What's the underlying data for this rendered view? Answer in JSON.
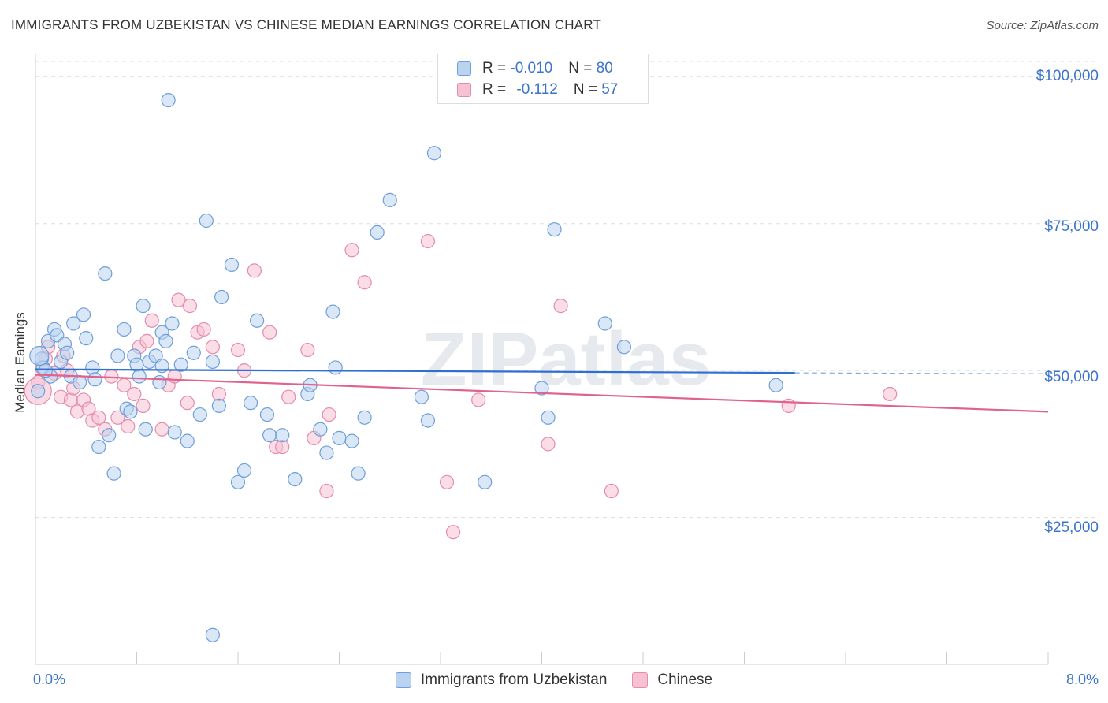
{
  "header": {
    "title": "IMMIGRANTS FROM UZBEKISTAN VS CHINESE MEDIAN EARNINGS CORRELATION CHART",
    "source": "Source: ZipAtlas.com"
  },
  "watermark": "ZIPatlas",
  "legend": {
    "rows": [
      {
        "r_label": "R = ",
        "r_value": "-0.010",
        "n_label": "N = ",
        "n_value": "80"
      },
      {
        "r_label": "R = ",
        "r_value": "-0.112",
        "n_label": "N = ",
        "n_value": "57"
      }
    ]
  },
  "colors": {
    "blue_fill": "#b9d3f1",
    "blue_stroke": "#6f9fd8",
    "blue_line": "#2f6fd0",
    "pink_fill": "#f6c1d3",
    "pink_stroke": "#e58bab",
    "pink_line": "#e0628f",
    "axis_label": "#3b74c9",
    "grid": "#dddddd"
  },
  "chart_data": {
    "type": "scatter",
    "title": "IMMIGRANTS FROM UZBEKISTAN VS CHINESE MEDIAN EARNINGS CORRELATION CHART",
    "xlabel": "",
    "ylabel": "Median Earnings",
    "xlim": [
      0,
      8
    ],
    "ylim": [
      0,
      105000
    ],
    "x_tick_labels": [
      "0.0%",
      "8.0%"
    ],
    "y_ticks": [
      25000,
      50000,
      75000,
      100000
    ],
    "y_tick_labels": [
      "$25,000",
      "$50,000",
      "$75,000",
      "$100,000"
    ],
    "grid": true,
    "legend_position": "bottom",
    "series": [
      {
        "name": "Immigrants from Uzbekistan",
        "color": "#6f9fd8",
        "trend": {
          "x": [
            0,
            6
          ],
          "y": [
            50200,
            49600
          ]
        },
        "points": [
          [
            0.02,
            46500
          ],
          [
            0.05,
            52000
          ],
          [
            0.06,
            50500
          ],
          [
            0.1,
            55000
          ],
          [
            0.12,
            49000
          ],
          [
            0.15,
            57000
          ],
          [
            0.17,
            56000
          ],
          [
            0.2,
            51500
          ],
          [
            0.23,
            54500
          ],
          [
            0.25,
            53000
          ],
          [
            0.28,
            49000
          ],
          [
            0.3,
            58000
          ],
          [
            0.35,
            48000
          ],
          [
            0.38,
            59500
          ],
          [
            0.45,
            50500
          ],
          [
            0.47,
            48500
          ],
          [
            0.5,
            37000
          ],
          [
            0.55,
            66500
          ],
          [
            0.58,
            39000
          ],
          [
            0.62,
            32500
          ],
          [
            0.65,
            52500
          ],
          [
            0.7,
            57000
          ],
          [
            0.72,
            43500
          ],
          [
            0.75,
            43000
          ],
          [
            0.78,
            52500
          ],
          [
            0.8,
            51000
          ],
          [
            0.82,
            49000
          ],
          [
            0.85,
            61000
          ],
          [
            0.87,
            40000
          ],
          [
            0.9,
            51500
          ],
          [
            0.95,
            52500
          ],
          [
            0.98,
            48000
          ],
          [
            1.0,
            56500
          ],
          [
            1.03,
            55000
          ],
          [
            1.05,
            96000
          ],
          [
            1.08,
            58000
          ],
          [
            1.1,
            39500
          ],
          [
            1.15,
            51000
          ],
          [
            1.2,
            38000
          ],
          [
            1.25,
            53000
          ],
          [
            1.3,
            42500
          ],
          [
            1.35,
            75500
          ],
          [
            1.4,
            51500
          ],
          [
            1.45,
            44000
          ],
          [
            1.47,
            62500
          ],
          [
            1.55,
            68000
          ],
          [
            1.6,
            31000
          ],
          [
            1.65,
            33000
          ],
          [
            1.7,
            44500
          ],
          [
            1.75,
            58500
          ],
          [
            1.83,
            42500
          ],
          [
            1.85,
            39000
          ],
          [
            1.95,
            39000
          ],
          [
            2.05,
            31500
          ],
          [
            2.15,
            46000
          ],
          [
            2.17,
            47500
          ],
          [
            2.25,
            40000
          ],
          [
            2.3,
            36000
          ],
          [
            2.35,
            60000
          ],
          [
            2.37,
            50500
          ],
          [
            2.4,
            38500
          ],
          [
            2.5,
            38000
          ],
          [
            2.55,
            32500
          ],
          [
            2.6,
            42000
          ],
          [
            2.7,
            73500
          ],
          [
            2.8,
            79000
          ],
          [
            3.05,
            45500
          ],
          [
            3.1,
            41500
          ],
          [
            3.15,
            87000
          ],
          [
            3.55,
            31000
          ],
          [
            4.0,
            47000
          ],
          [
            4.05,
            42000
          ],
          [
            4.1,
            74000
          ],
          [
            4.5,
            58000
          ],
          [
            4.65,
            54000
          ],
          [
            5.85,
            47500
          ],
          [
            1.4,
            5000
          ],
          [
            0.08,
            50000
          ],
          [
            0.4,
            55500
          ],
          [
            1.0,
            50800
          ]
        ]
      },
      {
        "name": "Chinese",
        "color": "#e58bab",
        "trend": {
          "x": [
            0,
            8
          ],
          "y": [
            49300,
            43000
          ]
        },
        "points": [
          [
            0.05,
            50500
          ],
          [
            0.08,
            52000
          ],
          [
            0.1,
            54000
          ],
          [
            0.15,
            49500
          ],
          [
            0.2,
            45500
          ],
          [
            0.22,
            52500
          ],
          [
            0.25,
            50000
          ],
          [
            0.28,
            45000
          ],
          [
            0.3,
            47000
          ],
          [
            0.33,
            43000
          ],
          [
            0.38,
            45000
          ],
          [
            0.42,
            43500
          ],
          [
            0.45,
            41500
          ],
          [
            0.5,
            42000
          ],
          [
            0.55,
            40000
          ],
          [
            0.6,
            49000
          ],
          [
            0.65,
            42000
          ],
          [
            0.7,
            47500
          ],
          [
            0.73,
            40500
          ],
          [
            0.78,
            46000
          ],
          [
            0.82,
            54000
          ],
          [
            0.85,
            44000
          ],
          [
            0.88,
            55000
          ],
          [
            0.92,
            58500
          ],
          [
            1.0,
            40000
          ],
          [
            1.05,
            47500
          ],
          [
            1.1,
            49000
          ],
          [
            1.13,
            62000
          ],
          [
            1.2,
            44500
          ],
          [
            1.22,
            61000
          ],
          [
            1.28,
            56500
          ],
          [
            1.33,
            57000
          ],
          [
            1.4,
            54000
          ],
          [
            1.45,
            46000
          ],
          [
            1.6,
            53500
          ],
          [
            1.65,
            50000
          ],
          [
            1.73,
            67000
          ],
          [
            1.85,
            56500
          ],
          [
            1.9,
            37000
          ],
          [
            1.95,
            37000
          ],
          [
            2.0,
            45500
          ],
          [
            2.15,
            53500
          ],
          [
            2.2,
            38500
          ],
          [
            2.3,
            29500
          ],
          [
            2.32,
            42500
          ],
          [
            2.5,
            70500
          ],
          [
            2.6,
            65000
          ],
          [
            3.1,
            72000
          ],
          [
            3.25,
            31000
          ],
          [
            3.3,
            22500
          ],
          [
            3.5,
            45000
          ],
          [
            4.05,
            37500
          ],
          [
            4.15,
            61000
          ],
          [
            4.55,
            29500
          ],
          [
            5.95,
            44000
          ],
          [
            6.75,
            46000
          ],
          [
            0.02,
            48000
          ]
        ]
      }
    ]
  },
  "axes": {
    "ylabel": "Median Earnings",
    "x_left": "0.0%",
    "x_right": "8.0%",
    "y_labels": [
      "$100,000",
      "$75,000",
      "$50,000",
      "$25,000"
    ]
  }
}
